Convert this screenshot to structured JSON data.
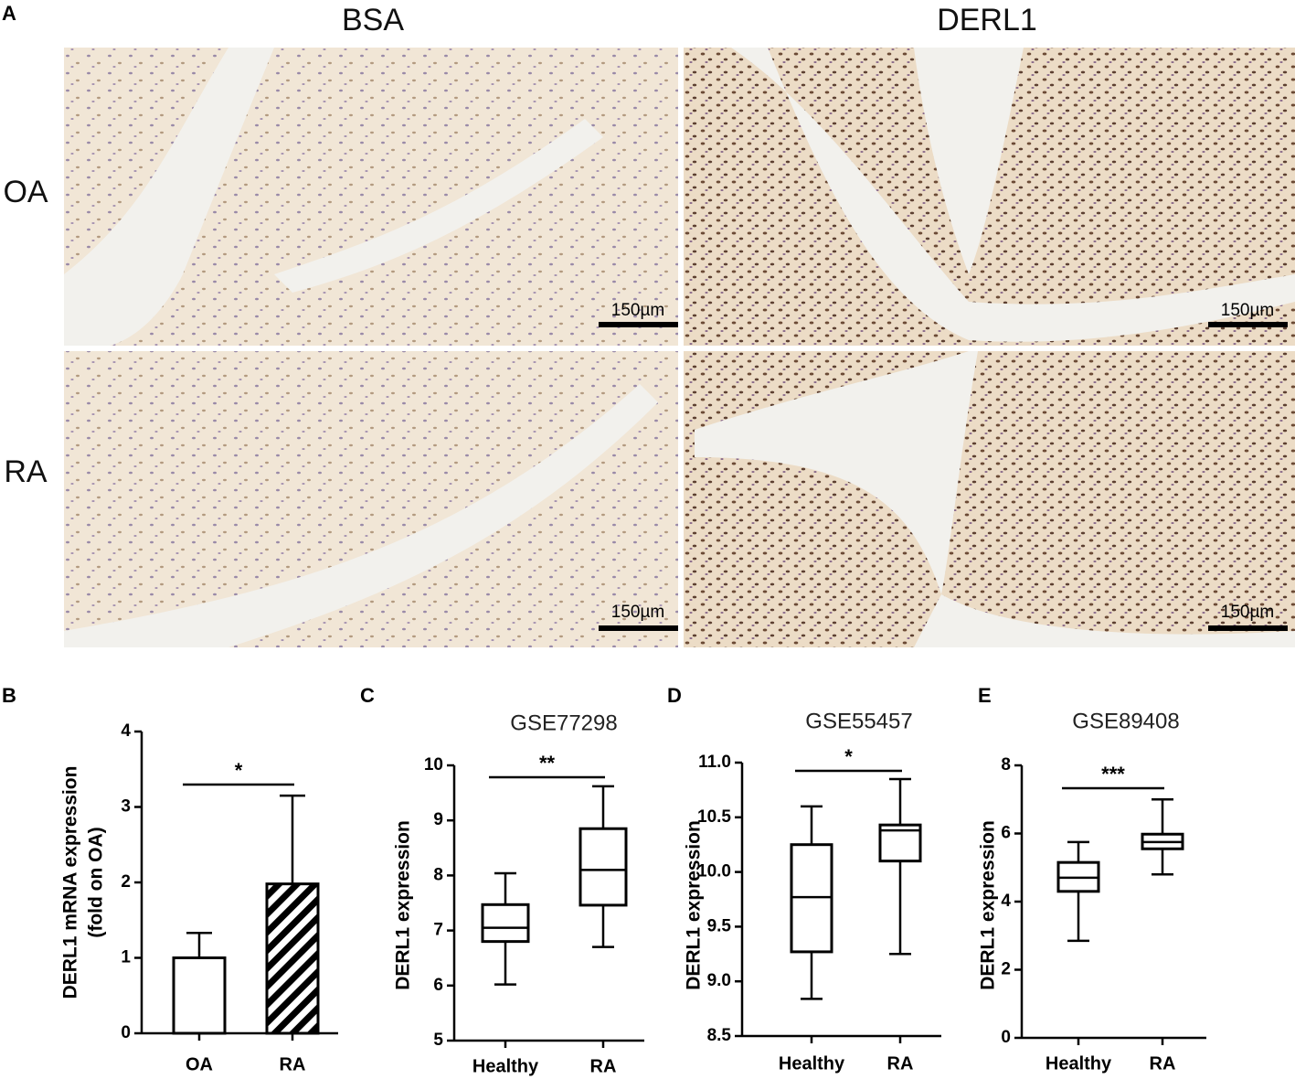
{
  "panel_a": {
    "label": "A",
    "columns": [
      "BSA",
      "DERL1"
    ],
    "rows": [
      "OA",
      "RA"
    ],
    "scale_bar": "150µm"
  },
  "chart_data": [
    {
      "type": "bar",
      "panel_label": "B",
      "ylabel": [
        "DERL1 mRNA expression",
        "(fold on OA)"
      ],
      "categories": [
        "OA",
        "RA"
      ],
      "values": [
        1.0,
        1.98
      ],
      "errors": [
        0.33,
        1.17
      ],
      "fills": [
        "white",
        "hatch"
      ],
      "ylim": [
        0,
        4
      ],
      "yticks": [
        0,
        1,
        2,
        3,
        4
      ],
      "significance": "*"
    },
    {
      "type": "box",
      "panel_label": "C",
      "title": "GSE77298",
      "ylabel": "DERL1 expression",
      "categories": [
        "Healthy",
        "RA"
      ],
      "boxes": [
        {
          "min": 6.02,
          "q1": 6.8,
          "median": 7.05,
          "q3": 7.47,
          "max": 8.04
        },
        {
          "min": 6.7,
          "q1": 7.46,
          "median": 8.1,
          "q3": 8.85,
          "max": 9.62
        }
      ],
      "ylim": [
        5,
        10
      ],
      "yticks": [
        5,
        6,
        7,
        8,
        9,
        10
      ],
      "significance": "**"
    },
    {
      "type": "box",
      "panel_label": "D",
      "title": "GSE55457",
      "ylabel": "DERL1 expression",
      "categories": [
        "Healthy",
        "RA"
      ],
      "boxes": [
        {
          "min": 8.84,
          "q1": 9.27,
          "median": 9.77,
          "q3": 10.25,
          "max": 10.6
        },
        {
          "min": 9.25,
          "q1": 10.1,
          "median": 10.38,
          "q3": 10.43,
          "max": 10.85
        }
      ],
      "ylim": [
        8.5,
        11.0
      ],
      "yticks": [
        8.5,
        {
          "value": 9,
          "label": "9.0"
        },
        9.5,
        {
          "value": 10,
          "label": "10.0"
        },
        10.5,
        {
          "value": 11,
          "label": "11.0"
        }
      ],
      "significance": "*"
    },
    {
      "type": "box",
      "panel_label": "E",
      "title": "GSE89408",
      "ylabel": "DERL1 expression",
      "categories": [
        "Healthy",
        "RA"
      ],
      "boxes": [
        {
          "min": 2.85,
          "q1": 4.3,
          "median": 4.7,
          "q3": 5.15,
          "max": 5.75
        },
        {
          "min": 4.8,
          "q1": 5.55,
          "median": 5.75,
          "q3": 5.98,
          "max": 7.0
        }
      ],
      "ylim": [
        0,
        8
      ],
      "yticks": [
        0,
        2,
        4,
        6,
        8
      ],
      "significance": "***"
    }
  ]
}
